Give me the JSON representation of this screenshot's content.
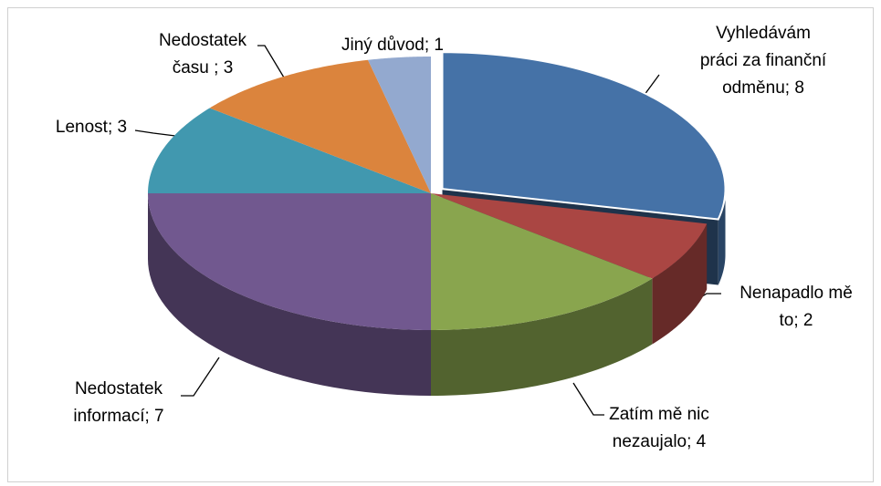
{
  "chart_data": {
    "type": "pie3d",
    "labels": [
      [
        "Vyhledávám",
        "práci za finanční",
        "odměnu; 8"
      ],
      [
        "Nenapadlo mě",
        "to; 2"
      ],
      [
        "Zatím mě nic",
        "nezaujalo; 4"
      ],
      [
        "Nedostatek",
        "informací; 7"
      ],
      [
        "Lenost; 3"
      ],
      [
        "Nedostatek",
        "času ; 3"
      ],
      [
        "Jiný důvod; 1"
      ]
    ],
    "values": [
      8,
      2,
      4,
      7,
      3,
      3,
      1
    ],
    "colors": [
      "#4572A7",
      "#AA4643",
      "#89A54E",
      "#71588F",
      "#4198AF",
      "#DB843D",
      "#93A9CF"
    ],
    "exploded": [
      true,
      false,
      false,
      false,
      false,
      false,
      false
    ]
  }
}
